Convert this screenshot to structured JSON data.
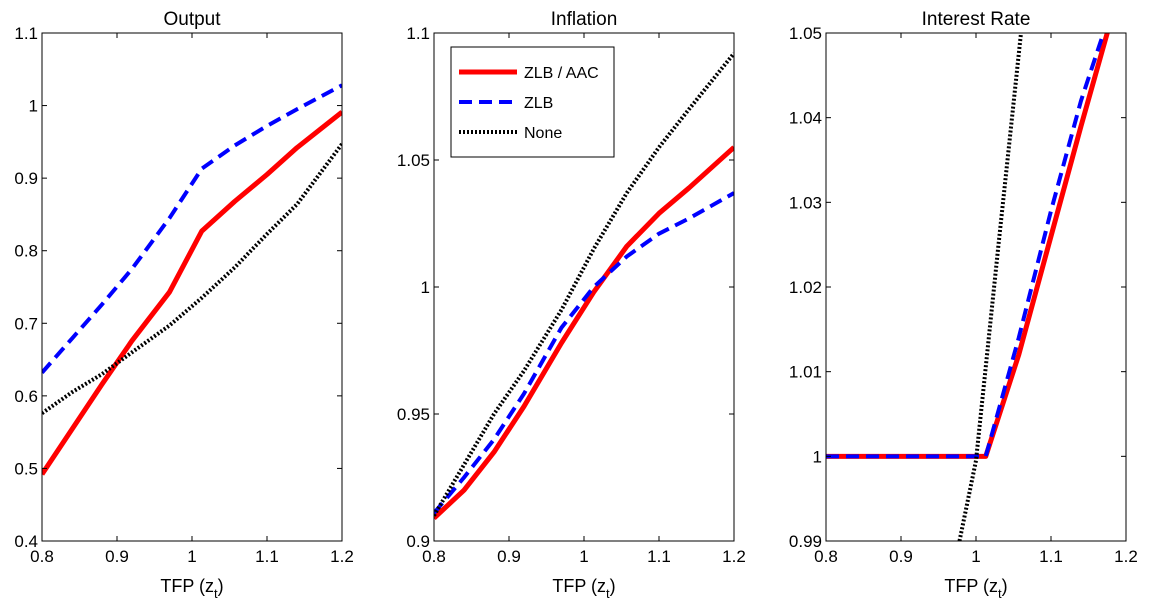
{
  "chart_data": [
    {
      "type": "line",
      "title": "Output",
      "xlabel": "TFP (z",
      "xlabel_sub": "t",
      "xlabel_close": ")",
      "xlim": [
        0.8,
        1.2
      ],
      "ylim": [
        0.4,
        1.1
      ],
      "xticks": [
        0.8,
        0.9,
        1,
        1.1,
        1.2
      ],
      "xtick_labels": [
        "0.8",
        "0.9",
        "1",
        "1.1",
        "1.2"
      ],
      "yticks": [
        0.4,
        0.5,
        0.6,
        0.7,
        0.8,
        0.9,
        1,
        1.1
      ],
      "ytick_labels": [
        "0.4",
        "0.5",
        "0.6",
        "0.7",
        "0.8",
        "0.9",
        "1",
        "1.1"
      ],
      "series": [
        {
          "name": "ZLB / AAC",
          "color": "#ff0000",
          "style": "solid",
          "x": [
            0.8,
            0.84,
            0.88,
            0.92,
            0.97,
            1.013,
            1.057,
            1.1,
            1.14,
            1.2
          ],
          "y": [
            0.492,
            0.554,
            0.616,
            0.676,
            0.743,
            0.827,
            0.868,
            0.905,
            0.942,
            0.991
          ]
        },
        {
          "name": "ZLB",
          "color": "#0000ff",
          "style": "dashed",
          "x": [
            0.8,
            0.84,
            0.88,
            0.92,
            0.97,
            1.013,
            1.057,
            1.1,
            1.14,
            1.2
          ],
          "y": [
            0.632,
            0.679,
            0.726,
            0.775,
            0.845,
            0.913,
            0.945,
            0.972,
            0.995,
            1.028
          ]
        },
        {
          "name": "None",
          "color": "#000000",
          "style": "dotted",
          "x": [
            0.8,
            0.84,
            0.88,
            0.92,
            0.97,
            1.013,
            1.057,
            1.1,
            1.14,
            1.2
          ],
          "y": [
            0.576,
            0.605,
            0.63,
            0.66,
            0.697,
            0.735,
            0.777,
            0.823,
            0.864,
            0.947
          ]
        }
      ]
    },
    {
      "type": "line",
      "title": "Inflation",
      "xlabel": "TFP (z",
      "xlabel_sub": "t",
      "xlabel_close": ")",
      "xlim": [
        0.8,
        1.2
      ],
      "ylim": [
        0.9,
        1.1
      ],
      "xticks": [
        0.8,
        0.9,
        1,
        1.1,
        1.2
      ],
      "xtick_labels": [
        "0.8",
        "0.9",
        "1",
        "1.1",
        "1.2"
      ],
      "yticks": [
        0.9,
        0.95,
        1,
        1.05,
        1.1
      ],
      "ytick_labels": [
        "0.9",
        "0.95",
        "1",
        "1.05",
        "1.1"
      ],
      "legend": {
        "position": "top-left",
        "entries": [
          "ZLB / AAC",
          "ZLB",
          "None"
        ]
      },
      "series": [
        {
          "name": "ZLB / AAC",
          "color": "#ff0000",
          "style": "solid",
          "x": [
            0.8,
            0.84,
            0.88,
            0.92,
            0.97,
            1.013,
            1.057,
            1.1,
            1.14,
            1.2
          ],
          "y": [
            0.909,
            0.92,
            0.935,
            0.953,
            0.978,
            0.998,
            1.016,
            1.029,
            1.039,
            1.055
          ]
        },
        {
          "name": "ZLB",
          "color": "#0000ff",
          "style": "dashed",
          "x": [
            0.8,
            0.84,
            0.88,
            0.92,
            0.97,
            1.013,
            1.057,
            1.1,
            1.14,
            1.2
          ],
          "y": [
            0.911,
            0.925,
            0.94,
            0.958,
            0.984,
            1.0,
            1.012,
            1.021,
            1.027,
            1.037
          ]
        },
        {
          "name": "None",
          "color": "#000000",
          "style": "dotted",
          "x": [
            0.8,
            0.84,
            0.88,
            0.92,
            0.97,
            1.013,
            1.057,
            1.1,
            1.14,
            1.2
          ],
          "y": [
            0.91,
            0.93,
            0.95,
            0.967,
            0.991,
            1.015,
            1.037,
            1.055,
            1.07,
            1.092
          ]
        }
      ]
    },
    {
      "type": "line",
      "title": "Interest Rate",
      "xlabel": "TFP (z",
      "xlabel_sub": "t",
      "xlabel_close": ")",
      "xlim": [
        0.8,
        1.2
      ],
      "ylim": [
        0.99,
        1.05
      ],
      "xticks": [
        0.8,
        0.9,
        1,
        1.1,
        1.2
      ],
      "xtick_labels": [
        "0.8",
        "0.9",
        "1",
        "1.1",
        "1.2"
      ],
      "yticks": [
        0.99,
        1.0,
        1.01,
        1.02,
        1.03,
        1.04,
        1.05
      ],
      "ytick_labels": [
        "0.99",
        "1",
        "1.01",
        "1.02",
        "1.03",
        "1.04",
        "1.05"
      ],
      "series": [
        {
          "name": "ZLB / AAC",
          "color": "#ff0000",
          "style": "solid",
          "x": [
            0.8,
            0.9,
            1.013,
            1.057,
            1.1,
            1.14,
            1.175
          ],
          "y": [
            1.0,
            1.0,
            1.0,
            1.012,
            1.026,
            1.039,
            1.05
          ]
        },
        {
          "name": "ZLB",
          "color": "#0000ff",
          "style": "dashed",
          "x": [
            0.8,
            0.9,
            1.013,
            1.057,
            1.1,
            1.14,
            1.17
          ],
          "y": [
            1.0,
            1.0,
            1.0,
            1.014,
            1.029,
            1.042,
            1.05
          ]
        },
        {
          "name": "None",
          "color": "#000000",
          "style": "dotted",
          "x": [
            0.978,
            1.0,
            1.03,
            1.06
          ],
          "y": [
            0.99,
            0.9995,
            1.025,
            1.05
          ]
        }
      ]
    }
  ]
}
